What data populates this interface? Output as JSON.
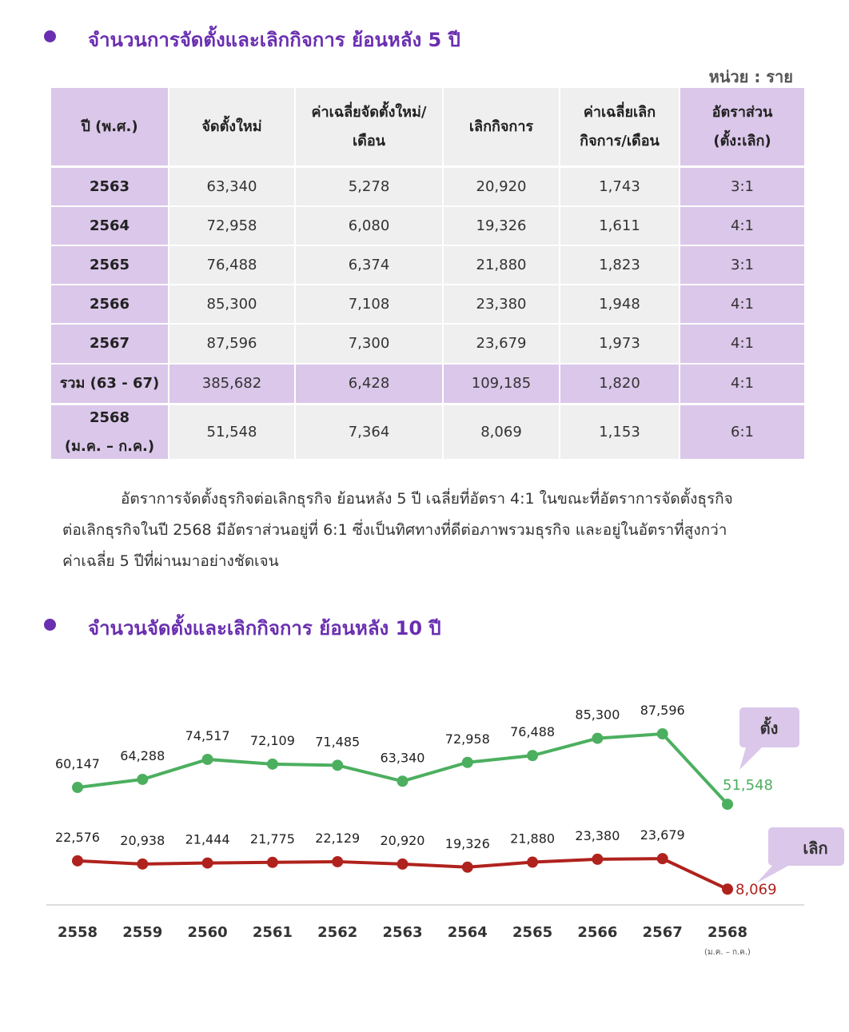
{
  "section1": {
    "title": "จำนวนการจัดตั้งและเลิกกิจการ ย้อนหลัง 5 ปี",
    "unit": "หน่วย : ราย"
  },
  "table": {
    "header": [
      [
        "ปี (พ.ศ.)"
      ],
      [
        "จัดตั้งใหม่"
      ],
      [
        "ค่าเฉลี่ยจัดตั้งใหม่/",
        "เดือน"
      ],
      [
        "เลิกกิจการ"
      ],
      [
        "ค่าเฉลี่ยเลิก",
        "กิจการ/เดือน"
      ],
      [
        "อัตราส่วน",
        "(ตั้ง:เลิก)"
      ]
    ],
    "rows": [
      [
        [
          "2563"
        ],
        "63,340",
        "5,278",
        "20,920",
        "1,743",
        "3:1"
      ],
      [
        [
          "2564"
        ],
        "72,958",
        "6,080",
        "19,326",
        "1,611",
        "4:1"
      ],
      [
        [
          "2565"
        ],
        "76,488",
        "6,374",
        "21,880",
        "1,823",
        "3:1"
      ],
      [
        [
          "2566"
        ],
        "85,300",
        "7,108",
        "23,380",
        "1,948",
        "4:1"
      ],
      [
        [
          "2567"
        ],
        "87,596",
        "7,300",
        "23,679",
        "1,973",
        "4:1"
      ],
      [
        [
          "รวม (63 - 67)"
        ],
        "385,682",
        "6,428",
        "109,185",
        "1,820",
        "4:1"
      ],
      [
        [
          "2568",
          "(ม.ค. – ก.ค.)"
        ],
        "51,548",
        "7,364",
        "8,069",
        "1,153",
        "6:1"
      ]
    ]
  },
  "paragraph": [
    "อัตราการจัดตั้งธุรกิจต่อเลิกธุรกิจ ย้อนหลัง 5 ปี เฉลี่ยที่อัตรา 4:1 ในขณะที่อัตราการจัดตั้งธุรกิจ",
    "ต่อเลิกธุรกิจในปี 2568 มีอัตราส่วนอยู่ที่ 6:1 ซึ่งเป็นทิศทางที่ดีต่อภาพรวมธุรกิจ และอยู่ในอัตราที่สูงกว่า",
    "ค่าเฉลี่ย 5 ปีที่ผ่านมาอย่างชัดเจน"
  ],
  "section2": {
    "title": "จำนวนจัดตั้งและเลิกกิจการ ย้อนหลัง 10 ปี"
  },
  "chart_data": {
    "type": "line",
    "categories": [
      "2558",
      "2559",
      "2560",
      "2561",
      "2562",
      "2563",
      "2564",
      "2565",
      "2566",
      "2567",
      "2568"
    ],
    "annotations": [
      "(ม.ค. – ก.ค.)"
    ],
    "series": [
      {
        "name": "ตั้ง",
        "color": "#4caf5f",
        "values": [
          60147,
          64288,
          74517,
          72109,
          71485,
          63340,
          72958,
          76488,
          85300,
          87596,
          51548
        ],
        "value_labels": [
          "60,147",
          "64,288",
          "74,517",
          "72,109",
          "71,485",
          "63,340",
          "72,958",
          "76,488",
          "85,300",
          "87,596",
          "51,548"
        ]
      },
      {
        "name": "เลิก",
        "color": "#b0221d",
        "values": [
          22576,
          20938,
          21444,
          21775,
          22129,
          20920,
          19326,
          21880,
          23380,
          23679,
          8069
        ],
        "value_labels": [
          "22,576",
          "20,938",
          "21,444",
          "21,775",
          "22,129",
          "20,920",
          "19,326",
          "21,880",
          "23,380",
          "23,679",
          "8,069"
        ]
      }
    ]
  }
}
